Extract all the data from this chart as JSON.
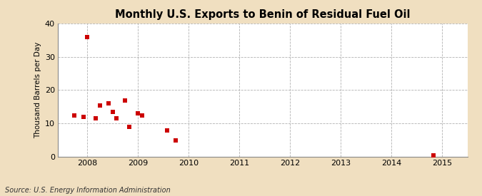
{
  "title": "Monthly U.S. Exports to Benin of Residual Fuel Oil",
  "ylabel": "Thousand Barrels per Day",
  "source": "Source: U.S. Energy Information Administration",
  "outer_bg": "#f0dfc0",
  "plot_bg": "#ffffff",
  "marker_color": "#cc0000",
  "marker_size": 16,
  "xlim": [
    2007.42,
    2015.5
  ],
  "ylim": [
    0,
    40
  ],
  "yticks": [
    0,
    10,
    20,
    30,
    40
  ],
  "xticks": [
    2008,
    2009,
    2010,
    2011,
    2012,
    2013,
    2014,
    2015
  ],
  "data_x": [
    2007.75,
    2007.92,
    2008.0,
    2008.17,
    2008.25,
    2008.42,
    2008.5,
    2008.58,
    2008.75,
    2008.83,
    2009.0,
    2009.08,
    2009.58,
    2009.75,
    2014.83
  ],
  "data_y": [
    12.5,
    12.0,
    36.0,
    11.5,
    15.5,
    16.0,
    13.5,
    11.5,
    17.0,
    9.0,
    13.0,
    12.5,
    8.0,
    5.0,
    0.5
  ]
}
